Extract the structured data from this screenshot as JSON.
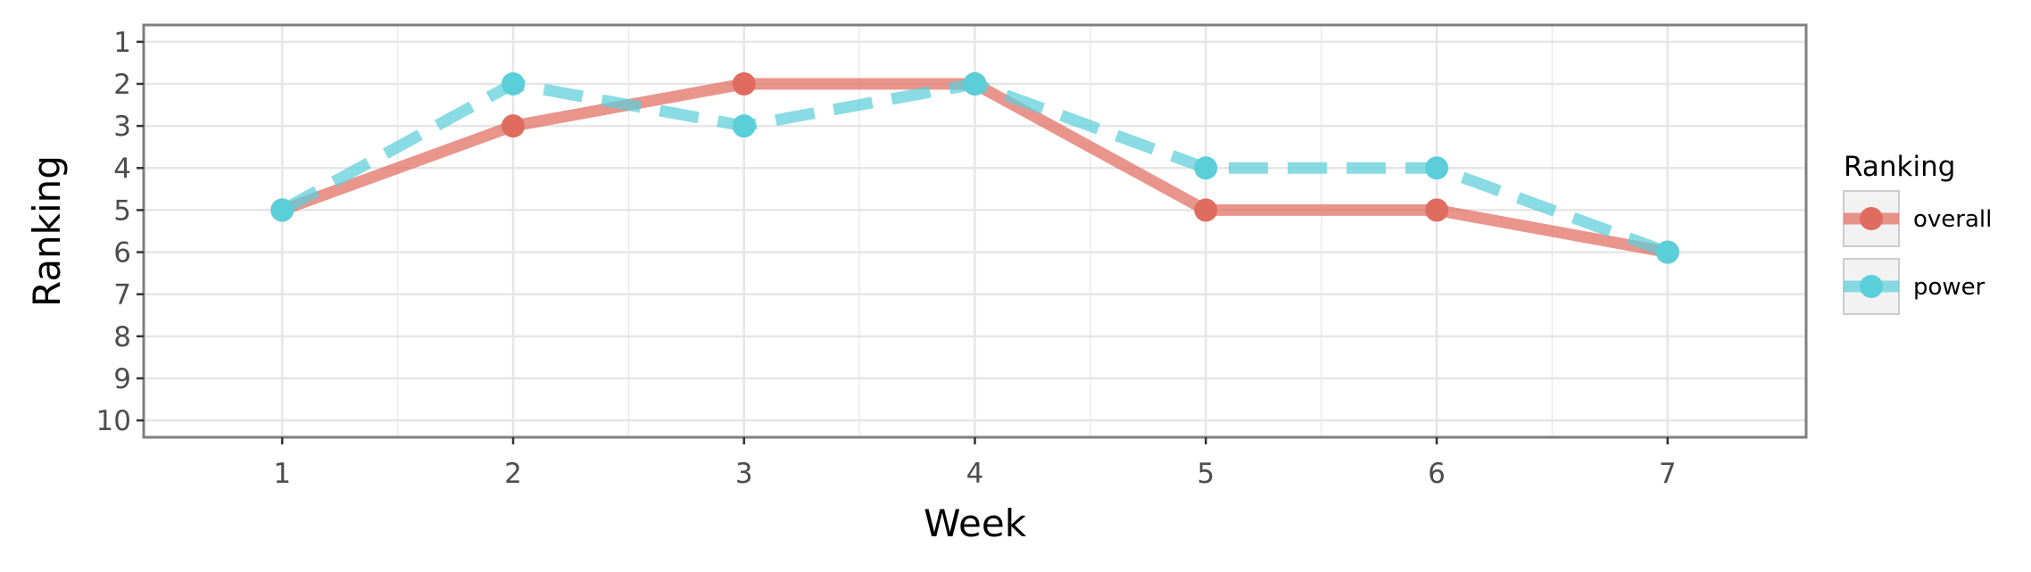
{
  "chart_data": {
    "type": "line",
    "xlabel": "Week",
    "ylabel": "Ranking",
    "x": [
      1,
      2,
      3,
      4,
      5,
      6,
      7
    ],
    "xlim": [
      0.4,
      7.6
    ],
    "ylim": [
      10.4,
      0.6
    ],
    "y_reversed": true,
    "x_ticks": [
      "1",
      "2",
      "3",
      "4",
      "5",
      "6",
      "7"
    ],
    "y_ticks": [
      "1",
      "2",
      "3",
      "4",
      "5",
      "6",
      "7",
      "8",
      "9",
      "10"
    ],
    "grid": true,
    "legend": {
      "title": "Ranking",
      "placement": "right"
    },
    "series": [
      {
        "name": "overall",
        "values": [
          5,
          3,
          2,
          2,
          5,
          5,
          6
        ],
        "color": "#e06c5f",
        "line_style": "solid"
      },
      {
        "name": "power",
        "values": [
          5,
          2,
          3,
          2,
          4,
          4,
          6
        ],
        "color": "#5bcfd9",
        "line_style": "dashed"
      }
    ]
  }
}
